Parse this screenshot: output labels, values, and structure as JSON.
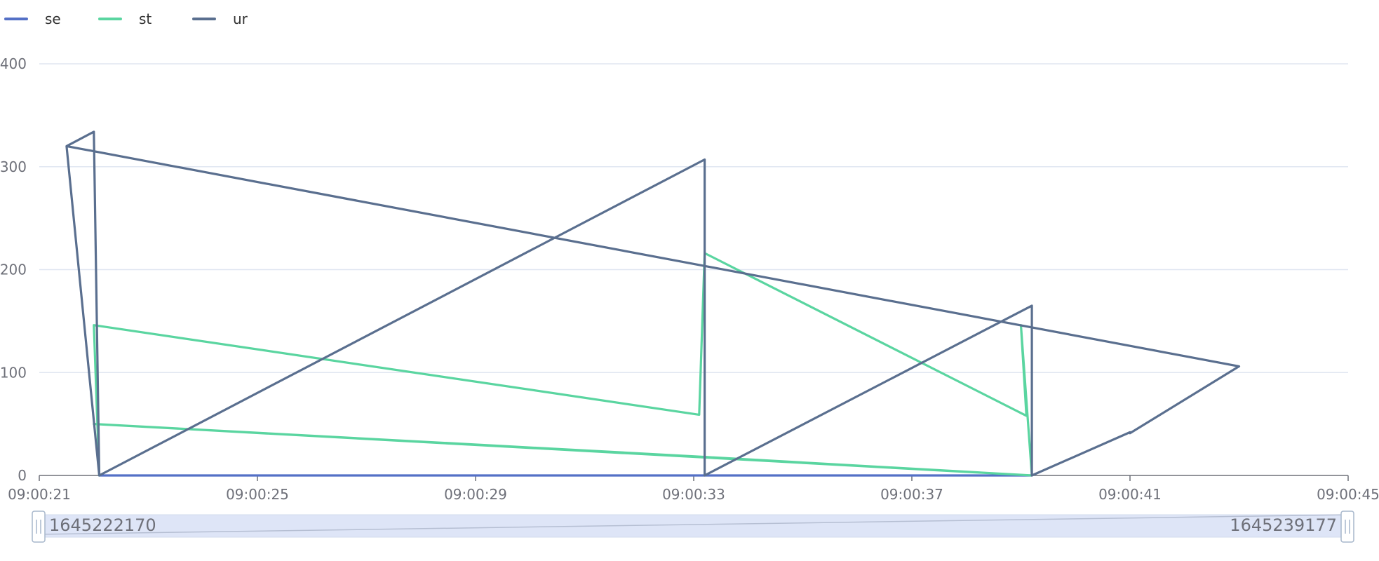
{
  "chart_data": {
    "type": "line",
    "legend": [
      {
        "name": "se",
        "color": "#5470c6"
      },
      {
        "name": "st",
        "color": "#5ad5a0"
      },
      {
        "name": "ur",
        "color": "#5a6f8f"
      }
    ],
    "legend_position": "top-left",
    "x_axis": {
      "type": "time",
      "min": "09:00:21",
      "max": "09:00:45",
      "ticks": [
        "09:00:21",
        "09:00:25",
        "09:00:29",
        "09:00:33",
        "09:00:37",
        "09:00:41",
        "09:00:45"
      ]
    },
    "y_axis": {
      "min": 0,
      "max": 400,
      "ticks": [
        0,
        100,
        200,
        300,
        400
      ]
    },
    "grid": "horizontal",
    "series": [
      {
        "name": "se",
        "color": "#5470c6",
        "points": [
          [
            "09:00:22.1",
            0
          ],
          [
            "09:00:33.2",
            0
          ],
          [
            "09:00:39.2",
            0
          ]
        ]
      },
      {
        "name": "st",
        "color": "#5ad5a0",
        "points": [
          [
            "09:00:22.1",
            0
          ],
          [
            "09:00:22.0",
            146
          ],
          [
            "09:00:33.1",
            59
          ],
          [
            "09:00:33.2",
            216
          ],
          [
            "09:00:39.1",
            58
          ],
          [
            "09:00:39.0",
            146
          ],
          [
            "09:00:39.2",
            0
          ],
          [
            "09:00:22.0",
            50
          ],
          [
            "09:00:33.2",
            18
          ],
          [
            "09:00:39.2",
            0
          ]
        ]
      },
      {
        "name": "ur",
        "color": "#5a6f8f",
        "points": [
          [
            "09:00:22.1",
            0
          ],
          [
            "09:00:21.5",
            320
          ],
          [
            "09:00:22.0",
            334
          ],
          [
            "09:00:22.1",
            0
          ],
          [
            "09:00:33.2",
            307
          ],
          [
            "09:00:33.2",
            0
          ],
          [
            "09:00:39.2",
            165
          ],
          [
            "09:00:39.2",
            0
          ],
          [
            "09:00:41.0",
            42
          ],
          [
            "09:00:41.0",
            41
          ],
          [
            "09:00:43.0",
            106
          ],
          [
            "09:00:21.5",
            320
          ]
        ]
      }
    ],
    "data_zoom": {
      "start_label": "1645222170",
      "end_label": "1645239177"
    }
  }
}
